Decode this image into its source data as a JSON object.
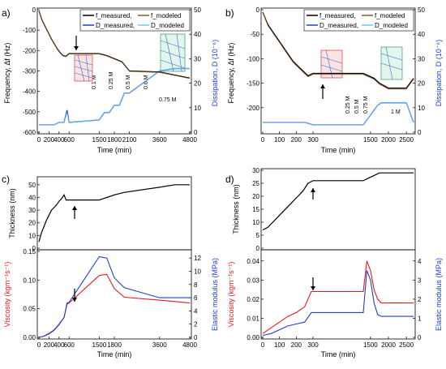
{
  "panels": {
    "a": "a)",
    "b": "b)",
    "c": "c)",
    "d": "d)"
  },
  "chart_data": [
    {
      "id": "a",
      "type": "line",
      "legend": [
        "f_measured,",
        "f_modeled",
        "D_measured,",
        "D_modeled"
      ],
      "legend_placement": "top-right",
      "xlabel": "Time (min)",
      "ylabel_left": "Frequency, Δf (Hz)",
      "ylabel_right": "Dissipation, D (10⁻⁶)",
      "ylim_left": [
        -600,
        0
      ],
      "ylim_right": [
        0,
        50
      ],
      "xticks": [
        "0",
        "200",
        "400",
        "600",
        "1500",
        "1800",
        "2100",
        "3600",
        "4800"
      ],
      "yticks_left": [
        "0",
        "-100",
        "-200",
        "-300",
        "-400",
        "-500",
        "-600"
      ],
      "yticks_right": [
        "0",
        "10",
        "20",
        "30",
        "40",
        "50"
      ],
      "annotations": [
        "0.1 M",
        "0.25 M",
        "0.5 M",
        "0.6 M",
        "0.75 M"
      ],
      "series": [
        {
          "name": "f_measured,",
          "color": "#000000",
          "x": [
            0,
            60,
            120,
            180,
            240,
            300,
            360,
            420,
            480,
            540,
            600,
            1500,
            1650,
            1800,
            1950,
            2100,
            3600,
            4200,
            4800
          ],
          "y": [
            -5,
            -50,
            -80,
            -110,
            -140,
            -165,
            -190,
            -210,
            -225,
            -228,
            -215,
            -215,
            -225,
            -240,
            -255,
            -300,
            -305,
            -320,
            -335
          ]
        },
        {
          "name": "f_modeled",
          "color": "#8B5A2B",
          "x": [
            0,
            60,
            120,
            180,
            240,
            300,
            360,
            420,
            480,
            540,
            600,
            1500,
            1650,
            1800,
            1950,
            2100,
            3600,
            4200,
            4800
          ],
          "y": [
            -5,
            -52,
            -82,
            -112,
            -142,
            -167,
            -192,
            -212,
            -227,
            -230,
            -217,
            -217,
            -227,
            -242,
            -257,
            -302,
            -307,
            -322,
            -337
          ]
        },
        {
          "name": "D_measured,",
          "color": "#1f3fd0",
          "x": [
            0,
            100,
            200,
            300,
            400,
            500,
            560,
            600,
            1500,
            1600,
            1700,
            1800,
            1900,
            2000,
            2100,
            3600,
            4200,
            4800
          ],
          "y": [
            3,
            3,
            3,
            3,
            4,
            4,
            9,
            4,
            5,
            8,
            8,
            11,
            11,
            16,
            16,
            25,
            26,
            26
          ]
        },
        {
          "name": "D_modeled",
          "color": "#6ec6ff",
          "x": [
            0,
            100,
            200,
            300,
            400,
            500,
            560,
            600,
            1500,
            1600,
            1700,
            1800,
            1900,
            2000,
            2100,
            3600,
            4200,
            4800
          ],
          "y": [
            3,
            3,
            3,
            3,
            4,
            4,
            8,
            4,
            5,
            8,
            8,
            11,
            11,
            16,
            16,
            25,
            26,
            26
          ]
        }
      ]
    },
    {
      "id": "b",
      "type": "line",
      "legend": [
        "f_measured,",
        "f_modeled",
        "D_measured,",
        "D_modeled"
      ],
      "legend_placement": "top-right",
      "xlabel": "Time (min)",
      "ylabel_left": "Frequency, Δf (Hz)",
      "ylabel_right": "Dissipation, D (10⁻⁶)",
      "ylim_left": [
        -250,
        0
      ],
      "ylim_right": [
        0,
        50
      ],
      "xticks": [
        "0",
        "100",
        "200",
        "300",
        "1500",
        "2000",
        "2500"
      ],
      "yticks_left": [
        "0",
        "-50",
        "-100",
        "-150",
        "-200"
      ],
      "yticks_right": [
        "0",
        "10",
        "20",
        "30",
        "40",
        "50"
      ],
      "annotations": [
        "0.25 M",
        "0.5 M",
        "0.75 M",
        "1 M"
      ],
      "series": [
        {
          "name": "f_measured,",
          "color": "#000000",
          "x": [
            0,
            30,
            60,
            90,
            120,
            150,
            180,
            210,
            240,
            270,
            300,
            1300,
            1450,
            1600,
            1750,
            2000,
            2500,
            2700
          ],
          "y": [
            -5,
            -30,
            -45,
            -60,
            -75,
            -90,
            -105,
            -115,
            -125,
            -135,
            -130,
            -130,
            -135,
            -140,
            -150,
            -160,
            -160,
            -140
          ]
        },
        {
          "name": "f_modeled",
          "color": "#8B5A2B",
          "x": [
            0,
            30,
            60,
            90,
            120,
            150,
            180,
            210,
            240,
            270,
            300,
            1300,
            1450,
            1600,
            1750,
            2000,
            2500,
            2700
          ],
          "y": [
            -5,
            -32,
            -47,
            -62,
            -77,
            -92,
            -107,
            -117,
            -127,
            -137,
            -132,
            -132,
            -137,
            -142,
            -152,
            -162,
            -162,
            -142
          ]
        },
        {
          "name": "D_measured,",
          "color": "#1f3fd0",
          "x": [
            0,
            50,
            100,
            150,
            200,
            250,
            300,
            1300,
            1400,
            1500,
            1600,
            1700,
            1800,
            2500,
            2700
          ],
          "y": [
            4,
            4,
            4,
            4,
            4,
            4,
            3,
            3,
            5,
            7,
            9,
            11,
            12,
            12,
            4
          ]
        },
        {
          "name": "D_modeled",
          "color": "#6ec6ff",
          "x": [
            0,
            50,
            100,
            150,
            200,
            250,
            300,
            1300,
            1400,
            1500,
            1600,
            1700,
            1800,
            2500,
            2700
          ],
          "y": [
            4,
            4,
            4,
            4,
            4,
            4,
            3,
            3,
            5,
            7,
            9,
            11,
            12,
            12,
            4
          ]
        }
      ]
    },
    {
      "id": "c",
      "type": "line",
      "xlabel": "Time (min)",
      "ylabel_top": "Thickness (nm)",
      "ylabel_left": "Viscosity (kgm⁻¹s⁻¹)",
      "ylabel_right": "Elastic modulus (MPa)",
      "ylim_top": [
        0,
        55
      ],
      "ylim_left": [
        0,
        0.15
      ],
      "ylim_right": [
        0,
        13
      ],
      "xticks": [
        "0",
        "200",
        "400",
        "600",
        "1500",
        "1800",
        "3600",
        "4800"
      ],
      "yticks_top": [
        "0",
        "10",
        "20",
        "30",
        "40",
        "50"
      ],
      "yticks_left": [
        "0.00",
        "0.05",
        "0.10",
        "0.15"
      ],
      "yticks_right": [
        "0",
        "2",
        "4",
        "6",
        "8",
        "10",
        "12"
      ],
      "series": [
        {
          "name": "Thickness",
          "color": "#000000",
          "x": [
            0,
            50,
            100,
            150,
            200,
            250,
            300,
            350,
            400,
            450,
            500,
            540,
            600,
            1500,
            1650,
            1800,
            2000,
            3600,
            4200,
            4800
          ],
          "y": [
            5,
            12,
            17,
            22,
            26,
            30,
            32,
            34,
            37,
            39,
            42,
            38,
            38,
            38,
            40,
            42,
            44,
            48,
            50,
            50
          ]
        },
        {
          "name": "Viscosity",
          "color": "#e41a1c",
          "x": [
            0,
            100,
            200,
            300,
            400,
            500,
            560,
            600,
            1500,
            1650,
            1800,
            2000,
            3600,
            4800
          ],
          "y": [
            0.0,
            0.002,
            0.006,
            0.012,
            0.022,
            0.035,
            0.058,
            0.06,
            0.108,
            0.11,
            0.085,
            0.07,
            0.065,
            0.06
          ]
        },
        {
          "name": "Elastic modulus",
          "color": "#1f3fd0",
          "x": [
            0,
            100,
            200,
            300,
            400,
            500,
            560,
            600,
            1500,
            1650,
            1800,
            2000,
            3600,
            4800
          ],
          "y": [
            0.0,
            0.2,
            0.6,
            1.1,
            2.0,
            3.0,
            5.2,
            5.3,
            12.2,
            12.0,
            9.0,
            7.5,
            6.0,
            6.0
          ]
        }
      ]
    },
    {
      "id": "d",
      "type": "line",
      "xlabel": "Time (min)",
      "ylabel_top": "Thickness (nm)",
      "ylabel_left": "Viscosity (kgm⁻¹s⁻¹)",
      "ylabel_right": "Elastic modulus (MPa)",
      "ylim_top": [
        0,
        30
      ],
      "ylim_left": [
        0,
        0.045
      ],
      "ylim_right": [
        0,
        4.5
      ],
      "xticks": [
        "0",
        "100",
        "200",
        "300",
        "1500",
        "2000",
        "2500"
      ],
      "yticks_top": [
        "0",
        "5",
        "10",
        "15",
        "20",
        "25",
        "30"
      ],
      "yticks_left": [
        "0.00",
        "0.01",
        "0.02",
        "0.03",
        "0.04"
      ],
      "yticks_right": [
        "0",
        "1",
        "2",
        "3",
        "4"
      ],
      "series": [
        {
          "name": "Thickness",
          "color": "#000000",
          "x": [
            0,
            30,
            60,
            90,
            120,
            150,
            180,
            210,
            240,
            270,
            300,
            1300,
            1450,
            1600,
            1750,
            2000,
            2500,
            2700
          ],
          "y": [
            7,
            8,
            10,
            12,
            14,
            16,
            18,
            20,
            22,
            25,
            26,
            26,
            27,
            28,
            29,
            29,
            29,
            29
          ]
        },
        {
          "name": "Viscosity",
          "color": "#e41a1c",
          "x": [
            0,
            50,
            100,
            150,
            200,
            250,
            290,
            300,
            1300,
            1400,
            1500,
            1600,
            1700,
            1800,
            2700
          ],
          "y": [
            0.002,
            0.005,
            0.008,
            0.011,
            0.013,
            0.016,
            0.024,
            0.024,
            0.024,
            0.04,
            0.035,
            0.025,
            0.02,
            0.018,
            0.018
          ]
        },
        {
          "name": "Elastic modulus",
          "color": "#1f3fd0",
          "x": [
            0,
            50,
            100,
            150,
            200,
            250,
            290,
            300,
            1300,
            1400,
            1500,
            1600,
            1700,
            1800,
            2700
          ],
          "y": [
            0.1,
            0.2,
            0.4,
            0.6,
            0.7,
            0.8,
            1.3,
            1.3,
            1.3,
            3.5,
            3.0,
            1.8,
            1.2,
            1.1,
            1.1
          ]
        }
      ]
    }
  ]
}
